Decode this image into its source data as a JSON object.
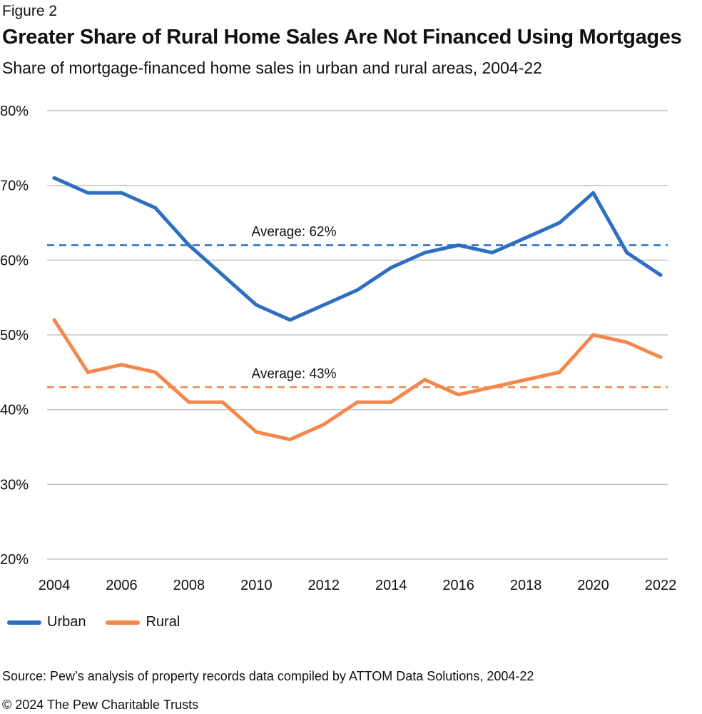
{
  "figure_label": "Figure 2",
  "chart_data": {
    "type": "line",
    "title": "Greater Share of Rural Home Sales Are Not Financed Using Mortgages",
    "subtitle": "Share of mortgage-financed home sales in urban and rural areas, 2004-22",
    "xlabel": "",
    "ylabel": "",
    "x": [
      2004,
      2005,
      2006,
      2007,
      2008,
      2009,
      2010,
      2011,
      2012,
      2013,
      2014,
      2015,
      2016,
      2017,
      2018,
      2019,
      2020,
      2021,
      2022
    ],
    "x_ticks": [
      "2004",
      "2006",
      "2008",
      "2010",
      "2012",
      "2014",
      "2016",
      "2018",
      "2020",
      "2022"
    ],
    "y_ticks": [
      "20%",
      "30%",
      "40%",
      "50%",
      "60%",
      "70%",
      "80%"
    ],
    "ylim": [
      20,
      80
    ],
    "grid": true,
    "legend_position": "bottom-left",
    "series": [
      {
        "name": "Urban",
        "color": "#2e6fc1",
        "values": [
          71,
          69,
          69,
          67,
          62,
          58,
          54,
          52,
          54,
          56,
          59,
          61,
          62,
          61,
          63,
          65,
          69,
          61,
          58
        ]
      },
      {
        "name": "Rural",
        "color": "#f4874b",
        "values": [
          52,
          45,
          46,
          45,
          41,
          41,
          37,
          36,
          38,
          41,
          41,
          44,
          42,
          43,
          44,
          45,
          50,
          49,
          47
        ]
      }
    ],
    "reference_lines": [
      {
        "label": "Average: 62%",
        "value": 62,
        "color": "#2e6fc1"
      },
      {
        "label": "Average: 43%",
        "value": 43,
        "color": "#f4874b"
      }
    ]
  },
  "source": "Source: Pew’s analysis of property records data compiled by ATTOM Data Solutions, 2004-22",
  "copyright": "© 2024 The Pew Charitable Trusts"
}
